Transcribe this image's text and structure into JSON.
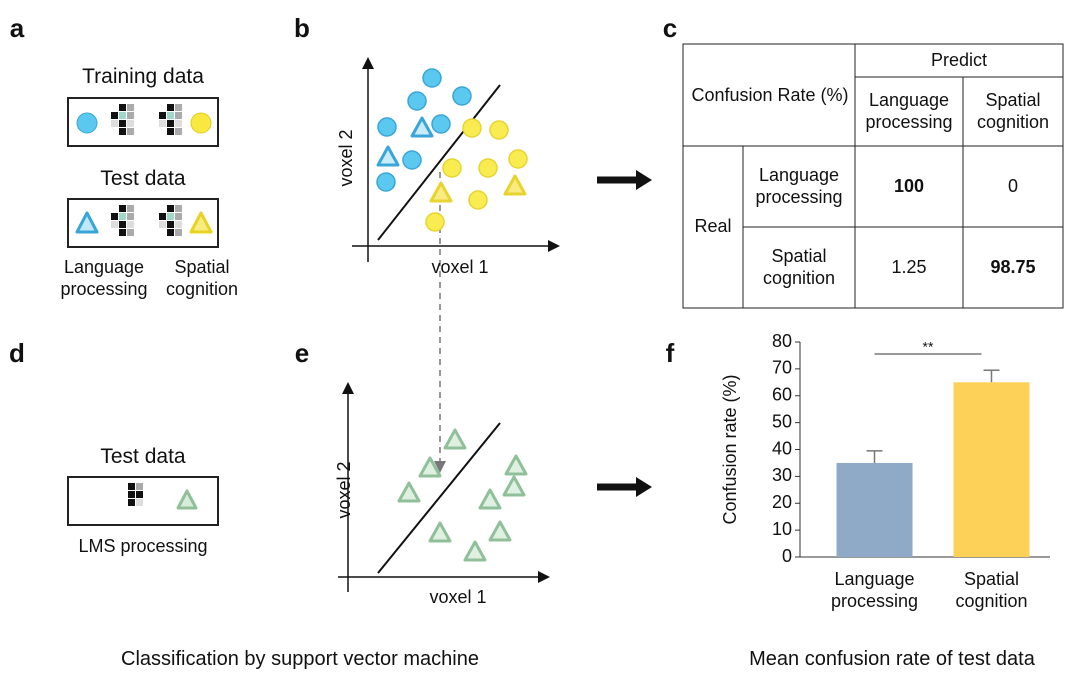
{
  "panel_labels": [
    "a",
    "b",
    "c",
    "d",
    "e",
    "f"
  ],
  "panel_a": {
    "training_title": "Training data",
    "test_title": "Test data",
    "labels": [
      "Language processing",
      "Spatial cognition"
    ]
  },
  "panel_b": {
    "x_label": "voxel 1",
    "y_label": "voxel 2"
  },
  "table": {
    "corner": "Confusion Rate (%)",
    "predict": "Predict",
    "columns": [
      "Language processing",
      "Spatial cognition"
    ],
    "real": "Real",
    "rows": [
      {
        "label": "Language processing",
        "values": [
          100,
          0
        ]
      },
      {
        "label": "Spatial cognition",
        "values": [
          1.25,
          98.75
        ]
      }
    ]
  },
  "panel_d": {
    "title": "Test data",
    "label": "LMS processing"
  },
  "panel_e": {
    "x_label": "voxel 1",
    "y_label": "voxel 2"
  },
  "captions": [
    "Classification by support vector machine",
    "Mean confusion rate of test data"
  ],
  "chart_data": {
    "type": "bar",
    "y_label": "Confusion rate (%)",
    "categories": [
      "Language processing",
      "Spatial cognition"
    ],
    "values": [
      35,
      65
    ],
    "errors": [
      4.5,
      4.5
    ],
    "colors": [
      "#8eaac7",
      "#fdd157"
    ],
    "ylim": [
      0,
      80
    ],
    "yticks": [
      0,
      10,
      20,
      30,
      40,
      50,
      60,
      70,
      80
    ],
    "annotation": "**"
  }
}
